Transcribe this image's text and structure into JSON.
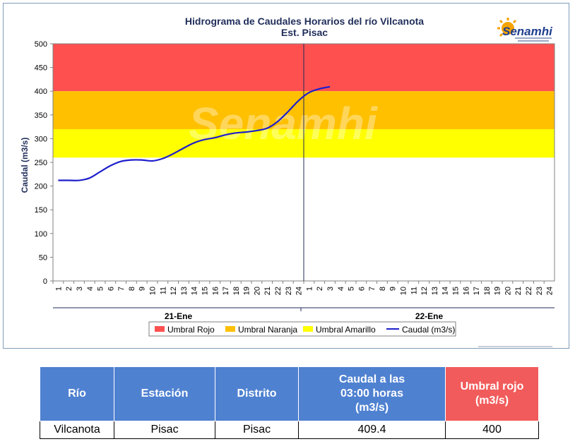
{
  "chart": {
    "title_line1": "Hidrograma de Caudales Horarios del río Vilcanota",
    "title_line2": "Est. Pisac",
    "logo_text": "Senamhi",
    "watermark_text": "Senamhi"
  },
  "colors": {
    "rojo": "#ff5050",
    "naranja": "#ffc000",
    "amarillo": "#ffff00",
    "caudal": "#1f1fcc",
    "table_header": "#4f81d1",
    "table_header_red": "#f25b5b"
  },
  "chart_data": {
    "type": "line",
    "title": "Hidrograma de Caudales Horarios del río Vilcanota",
    "subtitle": "Est. Pisac",
    "ylabel": "Caudal  (m3/s)",
    "xlabel": "",
    "ylim": [
      0,
      500
    ],
    "y_ticks": [
      0,
      50,
      100,
      150,
      200,
      250,
      300,
      350,
      400,
      450,
      500
    ],
    "grid": false,
    "legend_position": "bottom",
    "days": [
      "21-Ene",
      "22-Ene"
    ],
    "hours_per_day": [
      "1",
      "2",
      "3",
      "4",
      "5",
      "6",
      "7",
      "8",
      "9",
      "10",
      "11",
      "12",
      "13",
      "14",
      "15",
      "16",
      "17",
      "18",
      "19",
      "20",
      "21",
      "22",
      "23",
      "24"
    ],
    "thresholds": [
      {
        "name": "Umbral Rojo",
        "from": 400,
        "to": 500
      },
      {
        "name": "Umbral Naranja",
        "from": 320,
        "to": 400
      },
      {
        "name": "Umbral Amarillo",
        "from": 260,
        "to": 320
      }
    ],
    "series": [
      {
        "name": "Caudal (m3/s)",
        "x_hour_index": [
          1,
          2,
          3,
          4,
          5,
          6,
          7,
          8,
          9,
          10,
          11,
          12,
          13,
          14,
          15,
          16,
          17,
          18,
          19,
          20,
          21,
          22,
          23,
          24,
          25,
          26,
          27
        ],
        "values": [
          212,
          212,
          212,
          217,
          230,
          243,
          252,
          255,
          255,
          253,
          258,
          268,
          280,
          291,
          298,
          302,
          308,
          312,
          314,
          317,
          322,
          336,
          357,
          380,
          397,
          405,
          409.4
        ]
      }
    ],
    "legend": [
      "Umbral Rojo",
      "Umbral Naranja",
      "Umbral Amarillo",
      "Caudal (m3/s)"
    ]
  },
  "table": {
    "headers": {
      "rio": "Río",
      "estacion": "Estación",
      "distrito": "Distrito",
      "caudal_l1": "Caudal a las",
      "caudal_l2": "03:00 horas",
      "caudal_l3": "(m3/s)",
      "umbral_l1": "Umbral rojo",
      "umbral_l2": "(m3/s)"
    },
    "row": {
      "rio": "Vilcanota",
      "estacion": "Pisac",
      "distrito": "Pisac",
      "caudal": "409.4",
      "umbral": "400"
    }
  }
}
